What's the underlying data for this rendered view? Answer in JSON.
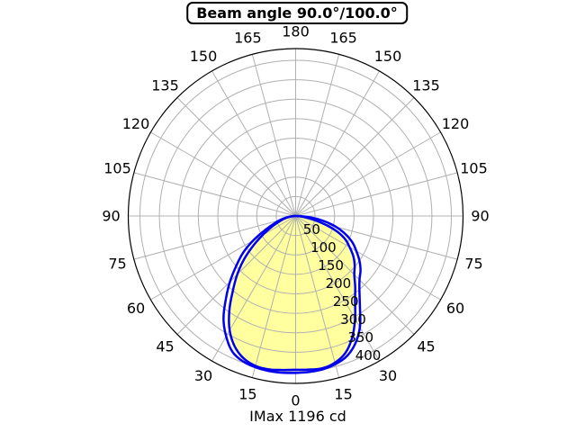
{
  "title": "Beam angle 90.0°/100.0°",
  "footer": "IMax 1196 cd",
  "chart_data": {
    "type": "polar",
    "title": "Beam angle 90.0°/100.0°",
    "max_intensity_label": "IMax 1196 cd",
    "max_intensity_cd": 1196,
    "beam_angles_deg": [
      90.0,
      100.0
    ],
    "r_max": 430,
    "r_ticks": [
      50,
      100,
      150,
      200,
      250,
      300,
      350,
      400
    ],
    "r_label_angle_deg": 22.5,
    "theta_step_deg": 15,
    "theta_labels_deg": [
      0,
      15,
      30,
      45,
      60,
      75,
      90,
      105,
      120,
      135,
      150,
      165,
      180
    ],
    "angles_deg": [
      -90,
      -85,
      -80,
      -75,
      -70,
      -65,
      -60,
      -55,
      -50,
      -45,
      -40,
      -35,
      -30,
      -25,
      -20,
      -15,
      -10,
      -5,
      0,
      5,
      10,
      15,
      20,
      25,
      30,
      35,
      40,
      45,
      50,
      55,
      60,
      65,
      70,
      75,
      80,
      85,
      90
    ],
    "curves": [
      {
        "name": "beam-90.0",
        "r": [
          0,
          9.5,
          21.5,
          34,
          49,
          71,
          98,
          133,
          173,
          212,
          251,
          297,
          339,
          370,
          389.5,
          398.5,
          400,
          397,
          395,
          396,
          397,
          390,
          374,
          344,
          305,
          266,
          238,
          213,
          198,
          181,
          160,
          140,
          110,
          70,
          38,
          16,
          0
        ]
      },
      {
        "name": "beam-100.0",
        "r": [
          0,
          11.5,
          26,
          43,
          61,
          88,
          126,
          165,
          199,
          238.5,
          279,
          323,
          357,
          384.5,
          397,
          402,
          404,
          404,
          403,
          402,
          400,
          394,
          383.5,
          362,
          330,
          288,
          255,
          232,
          217.5,
          200,
          180,
          161,
          136,
          107,
          72,
          36,
          0
        ]
      }
    ],
    "colors": {
      "curve": "#0000ee",
      "fill": "#ffffa0",
      "grid": "#b0b0b0",
      "outline": "#000000"
    }
  }
}
